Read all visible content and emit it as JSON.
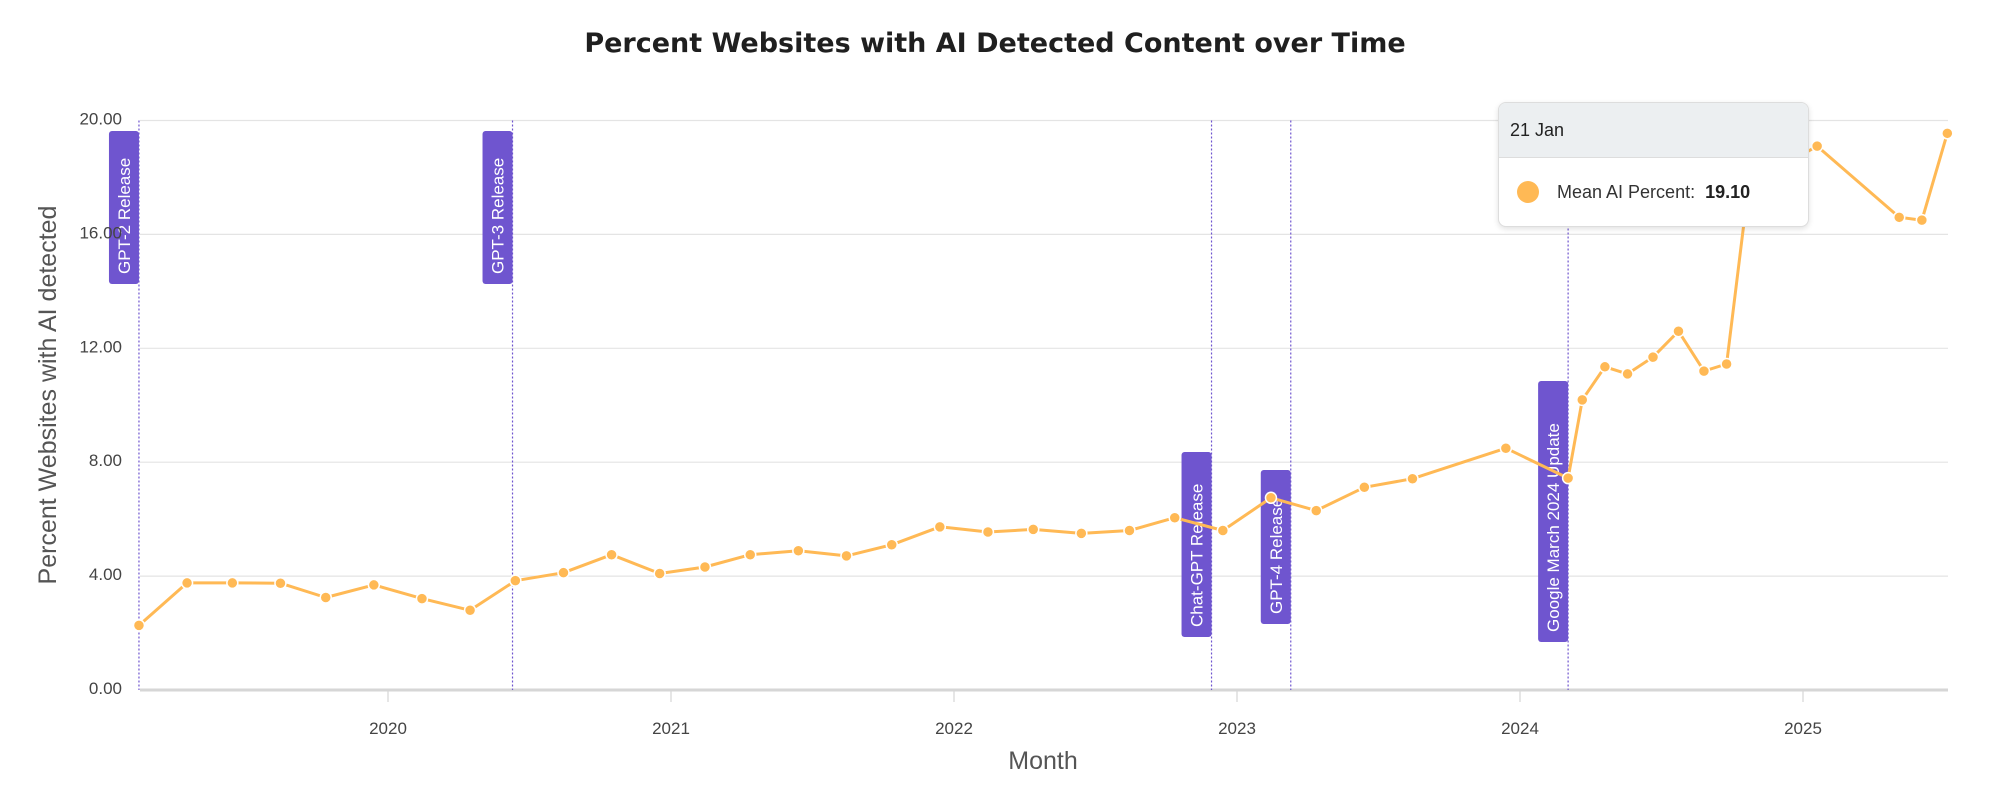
{
  "chart_data": {
    "type": "line",
    "title": "Percent Websites with AI Detected Content over Time",
    "xlabel": "Month",
    "ylabel": "Percent Websites with AI detected",
    "ylim": [
      0,
      20
    ],
    "xlim": [
      2019.12,
      2025.51
    ],
    "yticks": [
      "0.00",
      "4.00",
      "8.00",
      "12.00",
      "16.00",
      "20.00"
    ],
    "ytick_values": [
      0,
      4,
      8,
      12,
      16,
      20
    ],
    "xticks": [
      "2020",
      "2021",
      "2022",
      "2023",
      "2024",
      "2025"
    ],
    "xtick_values": [
      2020,
      2021,
      2022,
      2023,
      2024,
      2025
    ],
    "grid": true,
    "series": [
      {
        "name": "Mean AI Percent",
        "color": "#ffb955",
        "x": [
          2019.12,
          2019.29,
          2019.45,
          2019.62,
          2019.78,
          2019.95,
          2020.12,
          2020.29,
          2020.45,
          2020.62,
          2020.79,
          2020.96,
          2021.12,
          2021.28,
          2021.45,
          2021.62,
          2021.78,
          2021.95,
          2022.12,
          2022.28,
          2022.45,
          2022.62,
          2022.78,
          2022.95,
          2023.12,
          2023.28,
          2023.45,
          2023.62,
          2023.95,
          2024.17,
          2024.22,
          2024.3,
          2024.38,
          2024.47,
          2024.56,
          2024.65,
          2024.73,
          2024.81,
          2024.89,
          2024.98,
          2025.05,
          2025.34,
          2025.42,
          2025.51
        ],
        "values": [
          2.27,
          3.76,
          3.76,
          3.75,
          3.25,
          3.69,
          3.21,
          2.8,
          3.84,
          4.12,
          4.75,
          4.09,
          4.32,
          4.75,
          4.89,
          4.71,
          5.1,
          5.73,
          5.55,
          5.64,
          5.5,
          5.6,
          6.05,
          5.6,
          6.75,
          6.3,
          7.12,
          7.42,
          8.49,
          7.44,
          10.19,
          11.35,
          11.1,
          11.69,
          12.6,
          11.2,
          11.45,
          17.9,
          18.2,
          18.7,
          19.1,
          16.6,
          16.5,
          19.55
        ]
      }
    ],
    "annotations": [
      {
        "label": "GPT-2 Release",
        "x": 2019.12
      },
      {
        "label": "GPT-3 Release",
        "x": 2020.44
      },
      {
        "label": "Chat-GPT Release",
        "x": 2022.91
      },
      {
        "label": "GPT-4 Release",
        "x": 2023.19
      },
      {
        "label": "Google March 2024 Update",
        "x": 2024.17
      }
    ],
    "annotation_color": "#6f55cf",
    "tooltip": {
      "date": "21 Jan",
      "series": "Mean AI Percent:",
      "value": "19.10"
    }
  }
}
